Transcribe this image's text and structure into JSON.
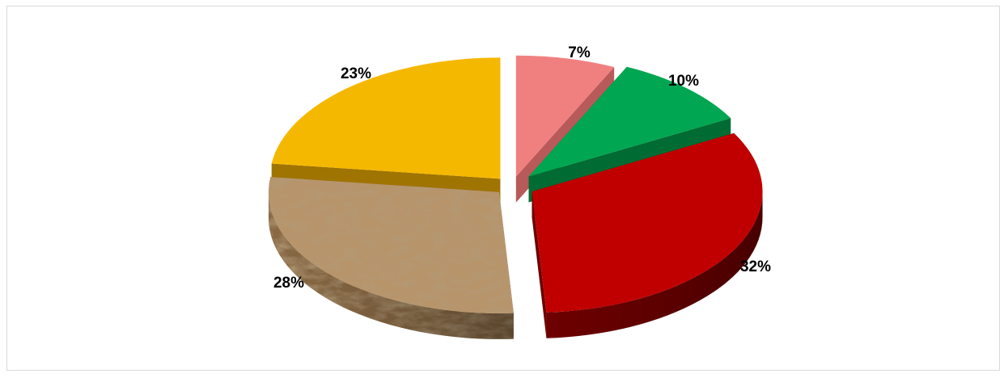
{
  "chart_data": {
    "type": "pie",
    "style": "3d-exploded",
    "slices": [
      {
        "value": 7,
        "label": "7%",
        "color": "#f08080",
        "side_color": "#b85a5a"
      },
      {
        "value": 10,
        "label": "10%",
        "color": "#00a651",
        "side_color": "#006b32"
      },
      {
        "value": 32,
        "label": "32%",
        "color": "#c00000",
        "side_color": "#6e0000"
      },
      {
        "value": 28,
        "label": "28%",
        "color": "#b8946a",
        "side_color": "#8a6a45",
        "texture": "wood"
      },
      {
        "value": 23,
        "label": "23%",
        "color": "#f5b800",
        "side_color": "#a07400"
      }
    ],
    "legend": "none",
    "title": ""
  }
}
